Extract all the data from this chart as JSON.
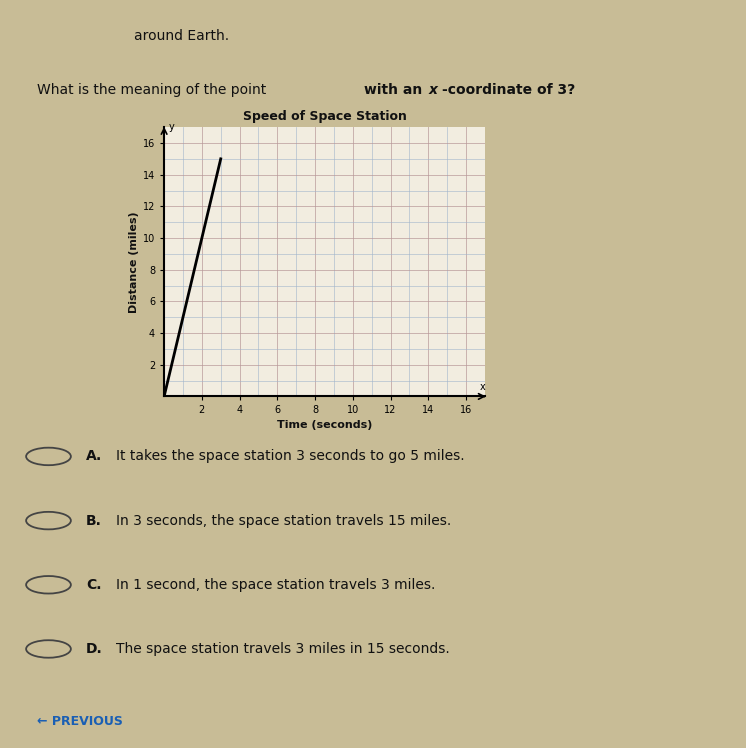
{
  "title": "Speed of Space Station",
  "xlabel": "Time (seconds)",
  "ylabel": "Distance (miles)",
  "background_color": "#c8bc96",
  "plot_bg_color": "#f2ede0",
  "line_color": "#000000",
  "line_x": [
    0,
    3
  ],
  "line_y": [
    0,
    15
  ],
  "xlim": [
    0,
    17
  ],
  "ylim": [
    0,
    17
  ],
  "xticks": [
    2,
    4,
    6,
    8,
    10,
    12,
    14,
    16
  ],
  "yticks": [
    2,
    4,
    6,
    8,
    10,
    12,
    14,
    16
  ],
  "title_fontsize": 9,
  "label_fontsize": 8,
  "tick_fontsize": 7,
  "question_text": "What is the meaning of the point with an x-coordinate of 3?",
  "choices": [
    {
      "bold": "A.",
      "text": "It takes the space station 3 seconds to go 5 miles."
    },
    {
      "bold": "B.",
      "text": "In 3 seconds, the space station travels 15 miles."
    },
    {
      "bold": "C.",
      "text": "In 1 second, the space station travels 3 miles."
    },
    {
      "bold": "D.",
      "text": "The space station travels 3 miles in 15 seconds."
    }
  ],
  "previous_text": "← PREVIOUS",
  "top_text": "around Earth."
}
